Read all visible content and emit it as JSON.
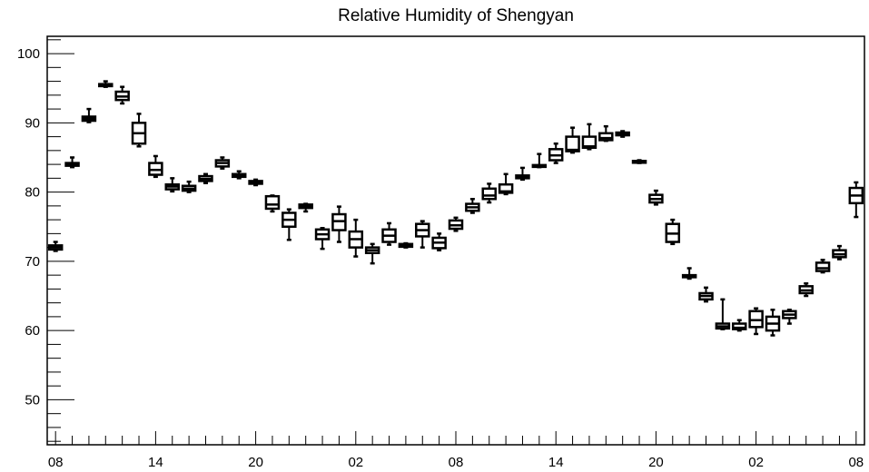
{
  "chart_data": {
    "type": "box",
    "title": "Relative Humidity of Shengyan",
    "xlabel": "",
    "ylabel": "",
    "ylim": [
      43.5,
      102.5
    ],
    "y_ticks": [
      50,
      60,
      70,
      80,
      90,
      100
    ],
    "x_tick_labels": [
      "08",
      "14",
      "20",
      "02",
      "08",
      "14",
      "20",
      "02",
      "08"
    ],
    "x_tick_positions": [
      0,
      6,
      12,
      18,
      24,
      30,
      36,
      42,
      48
    ],
    "grid": false,
    "legend": "none",
    "series": [
      {
        "x": 0,
        "min": 71.5,
        "q1": 71.7,
        "median": 72.0,
        "q3": 72.3,
        "max": 72.8
      },
      {
        "x": 1,
        "min": 83.6,
        "q1": 83.8,
        "median": 84.0,
        "q3": 84.2,
        "max": 85.0
      },
      {
        "x": 2,
        "min": 90.1,
        "q1": 90.3,
        "median": 90.6,
        "q3": 90.9,
        "max": 92.0
      },
      {
        "x": 3,
        "min": 95.2,
        "q1": 95.3,
        "median": 95.5,
        "q3": 95.6,
        "max": 96.0
      },
      {
        "x": 4,
        "min": 92.8,
        "q1": 93.3,
        "median": 93.8,
        "q3": 94.5,
        "max": 95.2
      },
      {
        "x": 5,
        "min": 86.6,
        "q1": 87.0,
        "median": 88.5,
        "q3": 90.0,
        "max": 91.3
      },
      {
        "x": 6,
        "min": 82.2,
        "q1": 82.5,
        "median": 83.2,
        "q3": 84.2,
        "max": 85.2
      },
      {
        "x": 7,
        "min": 80.1,
        "q1": 80.4,
        "median": 80.8,
        "q3": 81.1,
        "max": 82.0
      },
      {
        "x": 8,
        "min": 80.0,
        "q1": 80.2,
        "median": 80.5,
        "q3": 80.9,
        "max": 81.5
      },
      {
        "x": 9,
        "min": 81.3,
        "q1": 81.6,
        "median": 81.9,
        "q3": 82.3,
        "max": 82.6
      },
      {
        "x": 10,
        "min": 83.4,
        "q1": 83.7,
        "median": 84.2,
        "q3": 84.6,
        "max": 85.0
      },
      {
        "x": 11,
        "min": 82.0,
        "q1": 82.2,
        "median": 82.4,
        "q3": 82.6,
        "max": 83.0
      },
      {
        "x": 12,
        "min": 81.0,
        "q1": 81.2,
        "median": 81.4,
        "q3": 81.6,
        "max": 81.8
      },
      {
        "x": 13,
        "min": 77.2,
        "q1": 77.6,
        "median": 78.2,
        "q3": 79.4,
        "max": 79.5
      },
      {
        "x": 14,
        "min": 73.1,
        "q1": 75.0,
        "median": 76.0,
        "q3": 77.0,
        "max": 77.5
      },
      {
        "x": 15,
        "min": 77.2,
        "q1": 77.7,
        "median": 77.9,
        "q3": 78.2,
        "max": 78.3
      },
      {
        "x": 16,
        "min": 71.8,
        "q1": 73.2,
        "median": 73.9,
        "q3": 74.6,
        "max": 74.8
      },
      {
        "x": 17,
        "min": 72.8,
        "q1": 74.5,
        "median": 75.8,
        "q3": 76.8,
        "max": 77.9
      },
      {
        "x": 18,
        "min": 70.7,
        "q1": 72.0,
        "median": 73.2,
        "q3": 74.3,
        "max": 76.0
      },
      {
        "x": 19,
        "min": 69.7,
        "q1": 71.2,
        "median": 71.6,
        "q3": 72.0,
        "max": 72.5
      },
      {
        "x": 20,
        "min": 72.4,
        "q1": 72.8,
        "median": 73.7,
        "q3": 74.6,
        "max": 75.5
      },
      {
        "x": 21,
        "min": 72.0,
        "q1": 72.1,
        "median": 72.3,
        "q3": 72.5,
        "max": 72.6
      },
      {
        "x": 22,
        "min": 72.0,
        "q1": 73.6,
        "median": 74.5,
        "q3": 75.4,
        "max": 75.8
      },
      {
        "x": 23,
        "min": 71.6,
        "q1": 71.9,
        "median": 72.7,
        "q3": 73.4,
        "max": 74.0
      },
      {
        "x": 24,
        "min": 74.4,
        "q1": 74.7,
        "median": 75.2,
        "q3": 75.9,
        "max": 76.3
      },
      {
        "x": 25,
        "min": 77.0,
        "q1": 77.3,
        "median": 77.8,
        "q3": 78.3,
        "max": 79.0
      },
      {
        "x": 26,
        "min": 78.5,
        "q1": 79.0,
        "median": 79.5,
        "q3": 80.5,
        "max": 81.2
      },
      {
        "x": 27,
        "min": 79.7,
        "q1": 79.9,
        "median": 80.1,
        "q3": 81.1,
        "max": 82.6
      },
      {
        "x": 28,
        "min": 81.8,
        "q1": 82.0,
        "median": 82.2,
        "q3": 82.4,
        "max": 83.5
      },
      {
        "x": 29,
        "min": 83.6,
        "q1": 83.7,
        "median": 83.8,
        "q3": 83.9,
        "max": 85.5
      },
      {
        "x": 30,
        "min": 84.2,
        "q1": 84.6,
        "median": 85.3,
        "q3": 86.2,
        "max": 87.0
      },
      {
        "x": 31,
        "min": 85.7,
        "q1": 85.9,
        "median": 86.1,
        "q3": 88.0,
        "max": 89.3
      },
      {
        "x": 32,
        "min": 86.2,
        "q1": 86.4,
        "median": 86.6,
        "q3": 88.0,
        "max": 89.8
      },
      {
        "x": 33,
        "min": 87.4,
        "q1": 87.5,
        "median": 87.8,
        "q3": 88.5,
        "max": 89.5
      },
      {
        "x": 34,
        "min": 88.0,
        "q1": 88.2,
        "median": 88.4,
        "q3": 88.6,
        "max": 88.8
      },
      {
        "x": 35,
        "min": 84.2,
        "q1": 84.3,
        "median": 84.4,
        "q3": 84.5,
        "max": 84.6
      },
      {
        "x": 36,
        "min": 78.2,
        "q1": 78.5,
        "median": 79.0,
        "q3": 79.6,
        "max": 80.2
      },
      {
        "x": 37,
        "min": 72.5,
        "q1": 72.8,
        "median": 74.0,
        "q3": 75.4,
        "max": 76.0
      },
      {
        "x": 38,
        "min": 67.5,
        "q1": 67.7,
        "median": 67.9,
        "q3": 68.0,
        "max": 69.0
      },
      {
        "x": 39,
        "min": 64.2,
        "q1": 64.5,
        "median": 65.0,
        "q3": 65.4,
        "max": 66.2
      },
      {
        "x": 40,
        "min": 60.2,
        "q1": 60.3,
        "median": 60.6,
        "q3": 61.0,
        "max": 64.5
      },
      {
        "x": 41,
        "min": 60.0,
        "q1": 60.2,
        "median": 60.4,
        "q3": 61.0,
        "max": 61.5
      },
      {
        "x": 42,
        "min": 59.5,
        "q1": 60.5,
        "median": 61.5,
        "q3": 62.8,
        "max": 63.2
      },
      {
        "x": 43,
        "min": 59.3,
        "q1": 60.0,
        "median": 61.0,
        "q3": 62.0,
        "max": 63.0
      },
      {
        "x": 44,
        "min": 61.0,
        "q1": 61.8,
        "median": 62.3,
        "q3": 62.8,
        "max": 63.0
      },
      {
        "x": 45,
        "min": 65.0,
        "q1": 65.4,
        "median": 65.8,
        "q3": 66.4,
        "max": 66.8
      },
      {
        "x": 46,
        "min": 68.4,
        "q1": 68.6,
        "median": 69.0,
        "q3": 69.8,
        "max": 70.2
      },
      {
        "x": 47,
        "min": 70.3,
        "q1": 70.6,
        "median": 71.0,
        "q3": 71.6,
        "max": 72.2
      },
      {
        "x": 48,
        "min": 76.4,
        "q1": 78.4,
        "median": 79.5,
        "q3": 80.6,
        "max": 81.4
      }
    ]
  }
}
